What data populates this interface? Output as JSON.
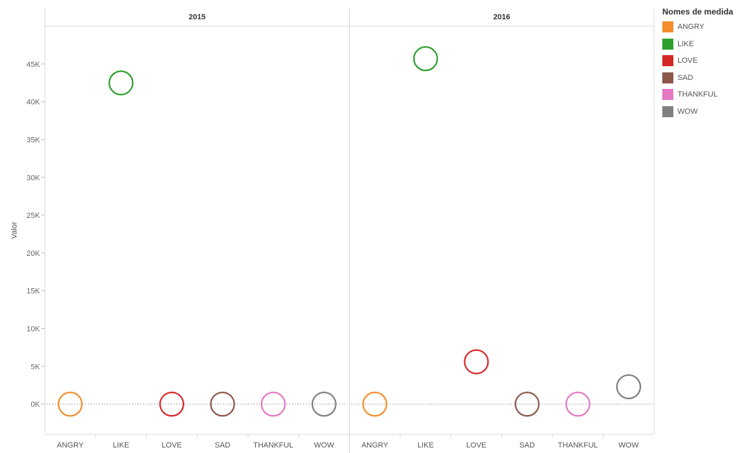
{
  "chart_data": {
    "type": "scatter",
    "facets": [
      "2015",
      "2016"
    ],
    "categories": [
      "ANGRY",
      "LIKE",
      "LOVE",
      "SAD",
      "THANKFUL",
      "WOW"
    ],
    "ylabel": "Valor",
    "ylim": [
      -4000,
      50000
    ],
    "yticks": [
      0,
      5000,
      10000,
      15000,
      20000,
      25000,
      30000,
      35000,
      40000,
      45000
    ],
    "ytick_labels": [
      "0K",
      "5K",
      "10K",
      "15K",
      "20K",
      "25K",
      "30K",
      "35K",
      "40K",
      "45K"
    ],
    "legend_title": "Nomes de medida",
    "legend_position": "top-right",
    "series": [
      {
        "name": "ANGRY",
        "color": "#f28e2b",
        "values": {
          "2015": 0,
          "2016": 0
        }
      },
      {
        "name": "LIKE",
        "color": "#2ca02c",
        "values": {
          "2015": 42500,
          "2016": 45700
        }
      },
      {
        "name": "LOVE",
        "color": "#d62728",
        "values": {
          "2015": 0,
          "2016": 5600
        }
      },
      {
        "name": "SAD",
        "color": "#8c564b",
        "values": {
          "2015": 0,
          "2016": 0
        }
      },
      {
        "name": "THANKFUL",
        "color": "#e377c2",
        "values": {
          "2015": 0,
          "2016": 0
        }
      },
      {
        "name": "WOW",
        "color": "#7f7f7f",
        "values": {
          "2015": 0,
          "2016": 2300
        }
      }
    ]
  }
}
